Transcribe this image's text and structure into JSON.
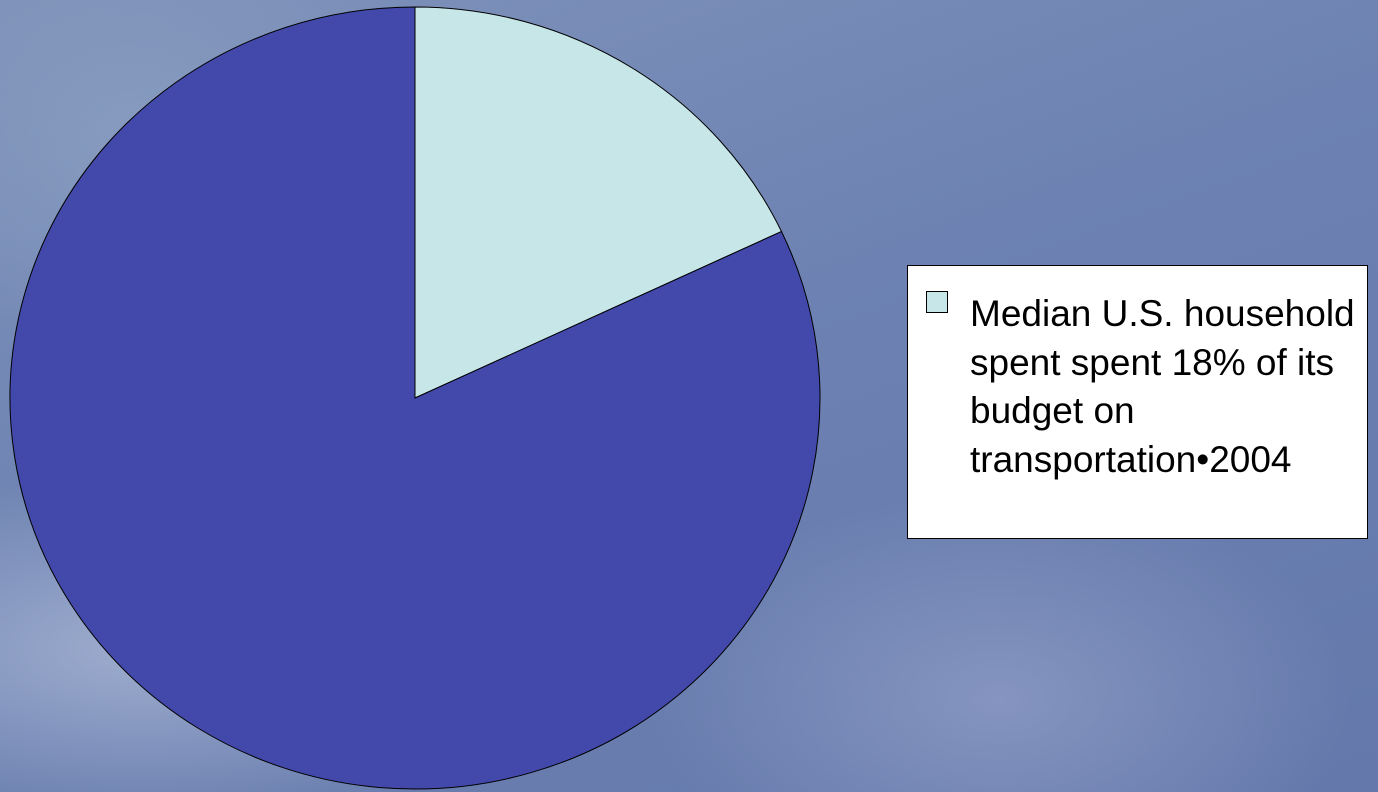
{
  "chart_data": {
    "type": "pie",
    "categories": [
      "Median U.S. household spent spent 18% of its budget on transportation•2004",
      null
    ],
    "values": [
      18,
      82
    ],
    "colors": [
      "#c6e6e8",
      "#4349ab"
    ],
    "legend": "right"
  }
}
